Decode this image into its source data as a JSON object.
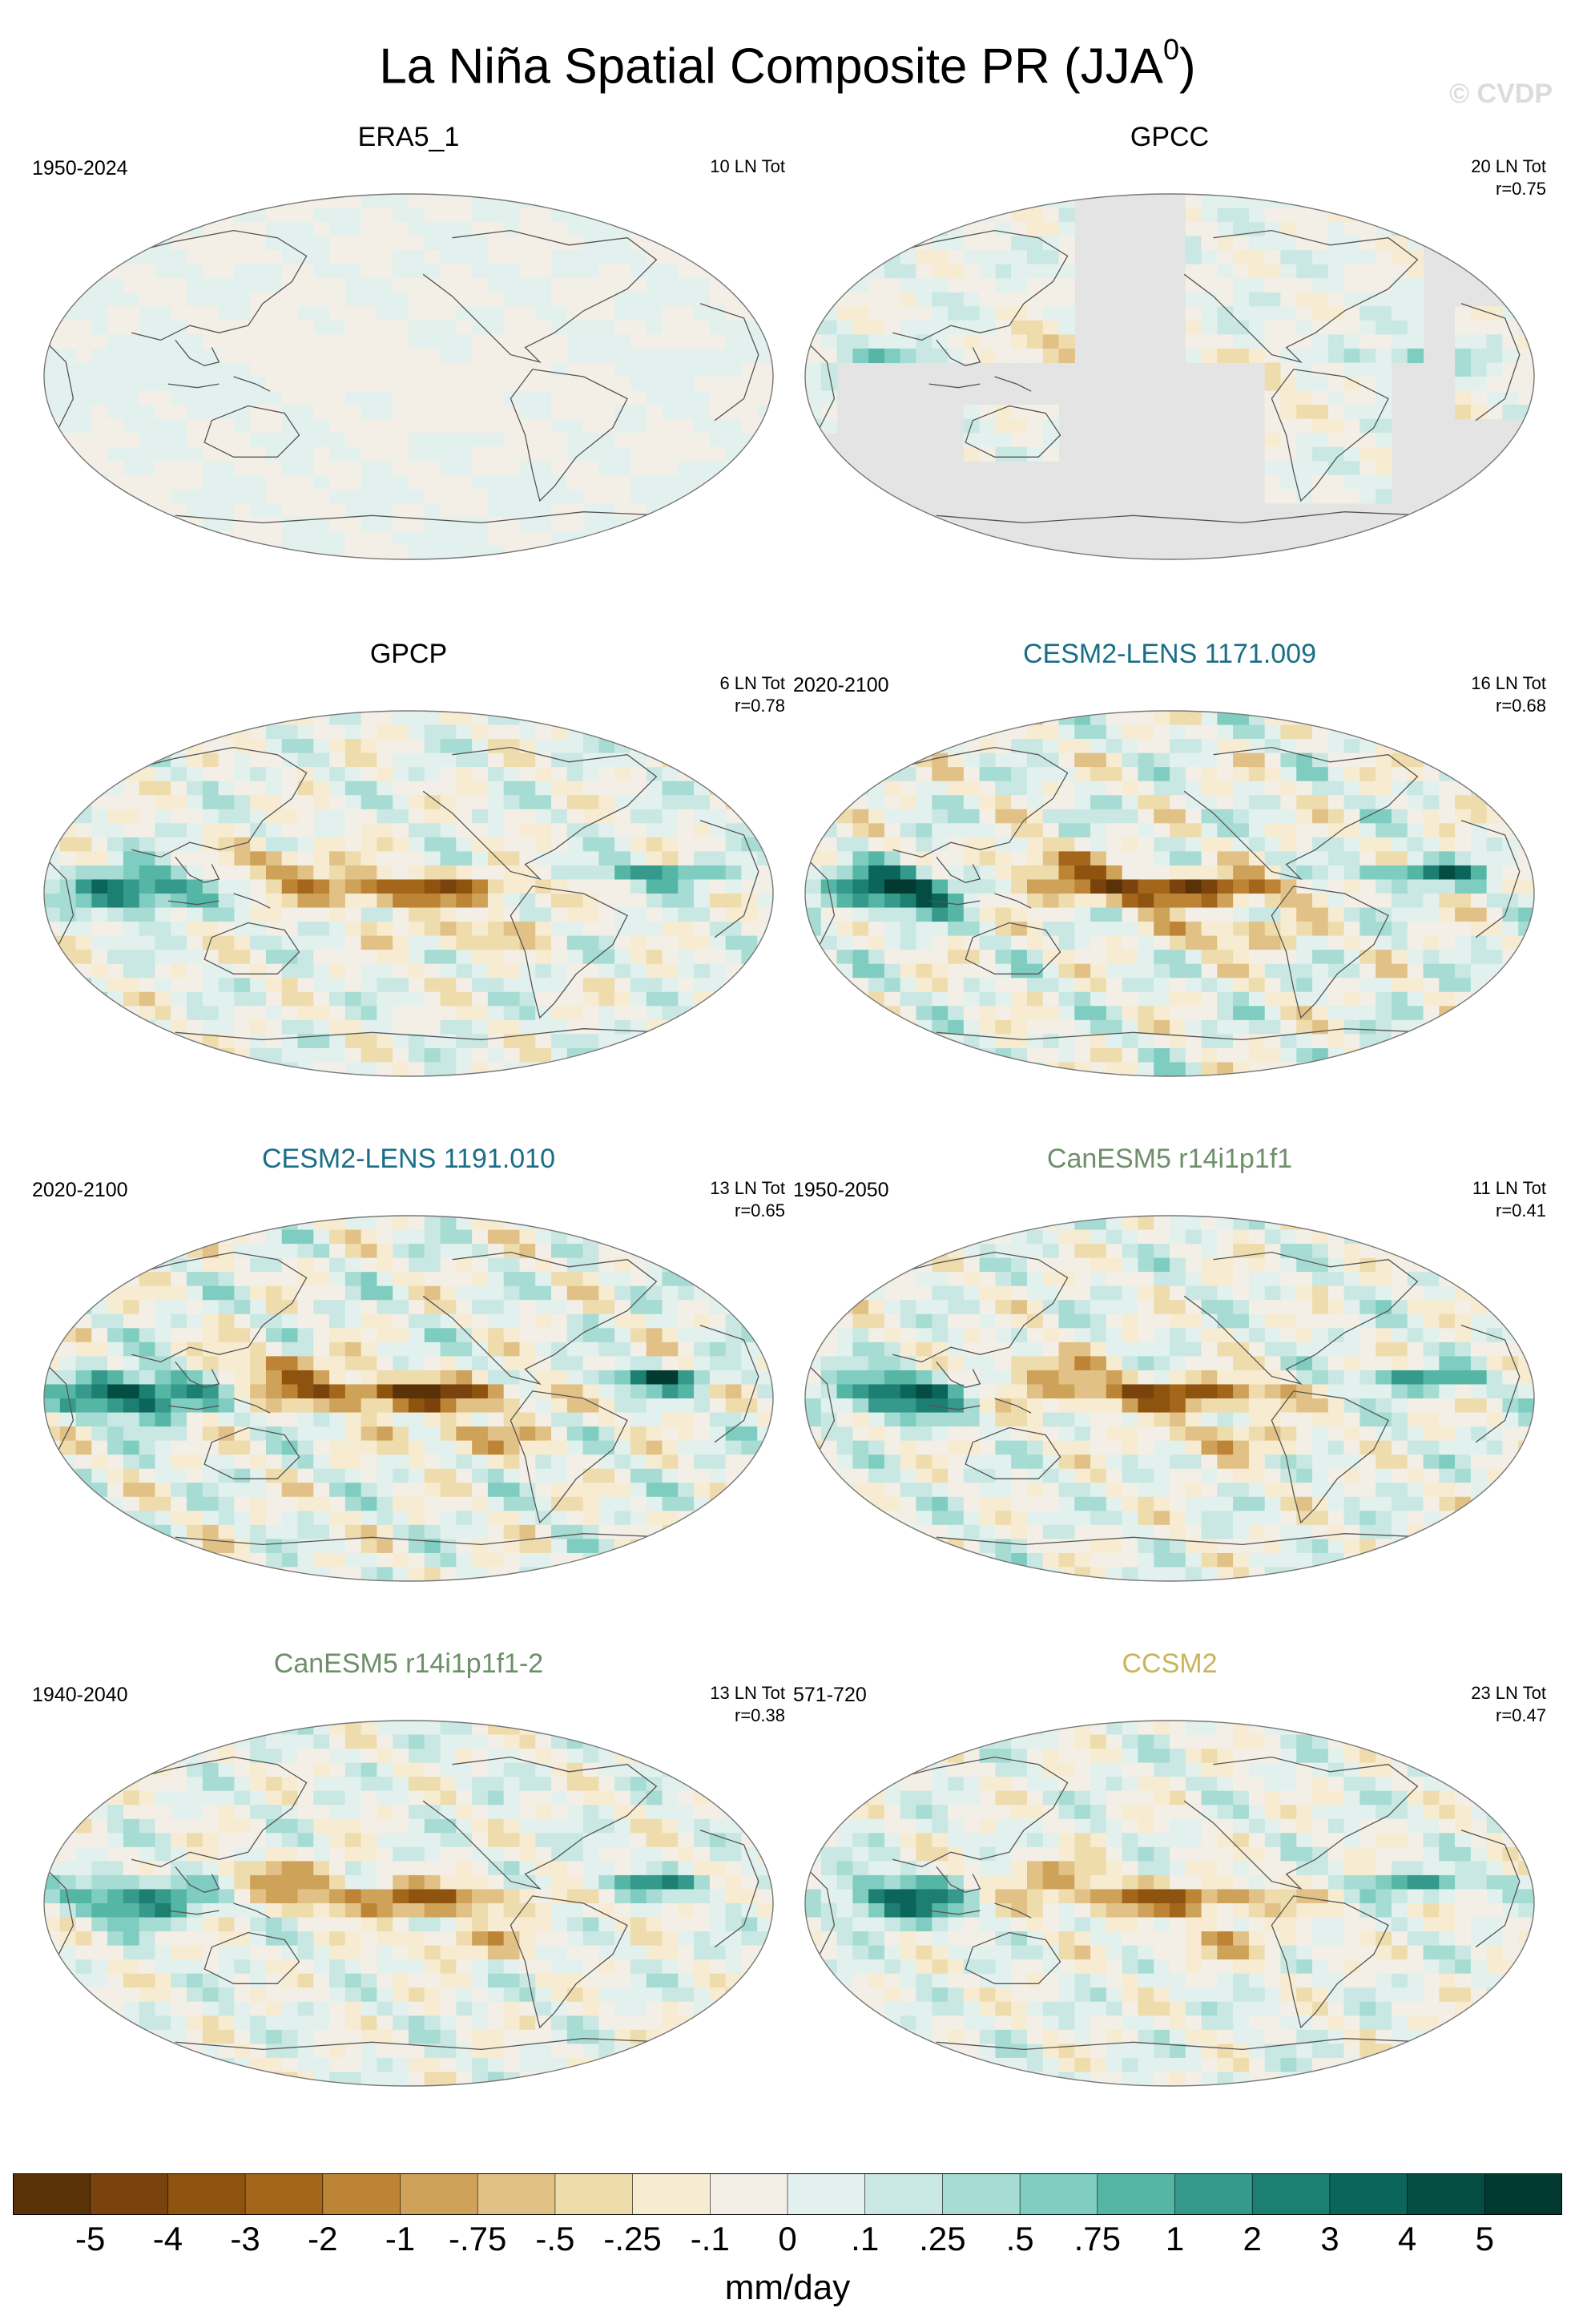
{
  "title": "La Niña Spatial Composite PR (JJA",
  "title_sup": "0",
  "title_close": ")",
  "watermark": "© CVDP",
  "colors": {
    "neg": [
      "#5a3208",
      "#7a420c",
      "#8f5310",
      "#a4661b",
      "#bc8434",
      "#cfa25a",
      "#e2c186",
      "#efdcad",
      "#f7ecd2",
      "#f4efe6"
    ],
    "pos": [
      "#e2f1ee",
      "#c9e8e3",
      "#a6dcd3",
      "#7ecdc0",
      "#55b6a6",
      "#35998b",
      "#1d7e72",
      "#0c655a",
      "#044d43",
      "#023a31"
    ],
    "land_mask": "#e4e4e4",
    "coast": "#555555"
  },
  "chart_data": {
    "type": "heatmap",
    "projection": "robinson-pacific-centered",
    "units": "mm/day",
    "colorbar_ticks": [
      "-5",
      "-4",
      "-3",
      "-2",
      "-1",
      "-.75",
      "-.5",
      "-.25",
      "-.1",
      "0",
      ".1",
      ".25",
      ".5",
      ".75",
      "1",
      "2",
      "3",
      "4",
      "5"
    ],
    "colorbar_label": "mm/day",
    "panels": [
      {
        "title": "ERA5_1",
        "title_color": "#000000",
        "period": "1950-2024",
        "stats": [
          "10 LN Tot"
        ],
        "intensity": 0.08,
        "masked_ocean": false
      },
      {
        "title": "GPCC",
        "title_color": "#000000",
        "period": "",
        "stats": [
          "20 LN Tot",
          "r=0.75"
        ],
        "intensity": 0.55,
        "masked_ocean": true
      },
      {
        "title": "GPCP",
        "title_color": "#000000",
        "period": "",
        "stats": [
          "6 LN Tot",
          "r=0.78"
        ],
        "intensity": 0.8,
        "masked_ocean": false
      },
      {
        "title": "CESM2-LENS 1171.009",
        "title_color": "#1a6e85",
        "period": "2020-2100",
        "stats": [
          "16 LN Tot",
          "r=0.68"
        ],
        "intensity": 1.0,
        "masked_ocean": false
      },
      {
        "title": "CESM2-LENS 1191.010",
        "title_color": "#1a6e85",
        "period": "2020-2100",
        "stats": [
          "13 LN Tot",
          "r=0.65"
        ],
        "intensity": 1.0,
        "masked_ocean": false
      },
      {
        "title": "CanESM5 r14i1p1f1",
        "title_color": "#6e8f6a",
        "period": "1950-2050",
        "stats": [
          "11 LN Tot",
          "r=0.41"
        ],
        "intensity": 0.85,
        "masked_ocean": false
      },
      {
        "title": "CanESM5 r14i1p1f1-2",
        "title_color": "#6e8f6a",
        "period": "1940-2040",
        "stats": [
          "13 LN Tot",
          "r=0.38"
        ],
        "intensity": 0.75,
        "masked_ocean": false
      },
      {
        "title": "CCSM2",
        "title_color": "#c8b55a",
        "period": "571-720",
        "stats": [
          "23 LN Tot",
          "r=0.47"
        ],
        "intensity": 0.75,
        "masked_ocean": false
      }
    ]
  }
}
